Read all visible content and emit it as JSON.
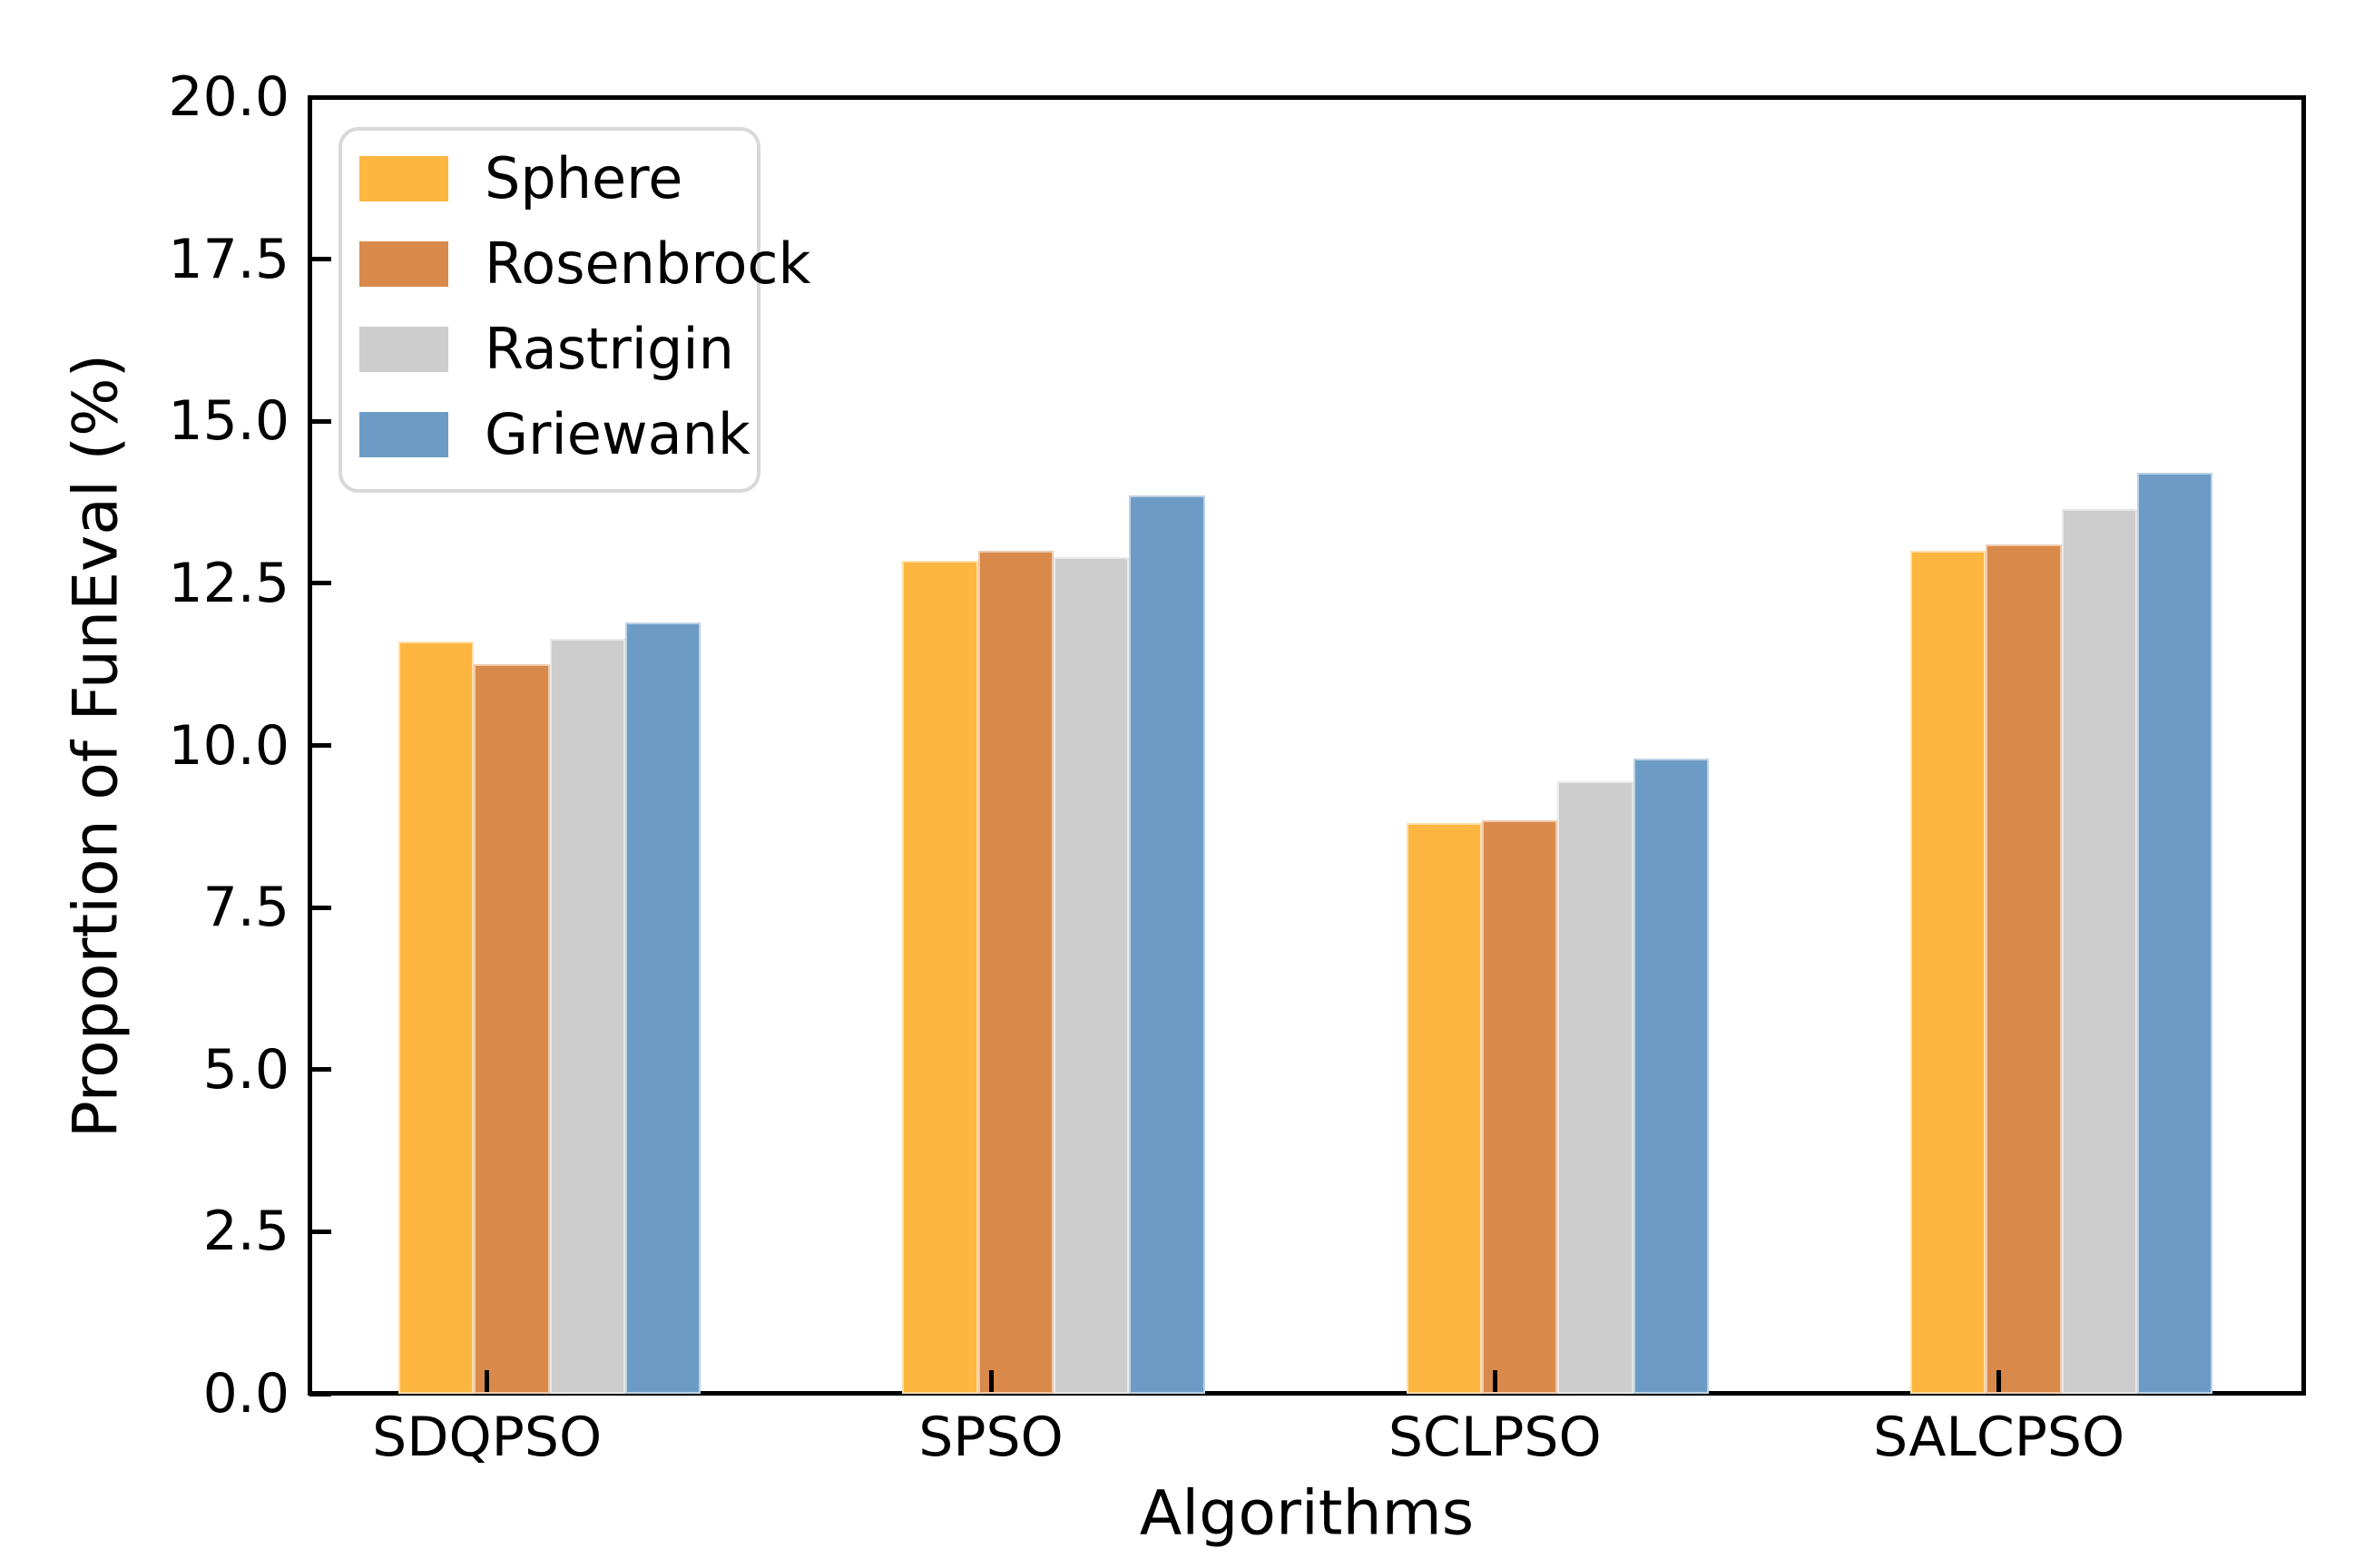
{
  "chart_data": {
    "type": "bar",
    "title": "",
    "xlabel": "Algorithms",
    "ylabel": "Proportion of FunEval (%)",
    "categories": [
      "SDQPSO",
      "SPSO",
      "SCLPSO",
      "SALCPSO"
    ],
    "series": [
      {
        "name": "Sphere",
        "color": "#FDB640",
        "values": [
          11.6,
          12.85,
          8.8,
          13.0
        ]
      },
      {
        "name": "Rosenbrock",
        "color": "#D98A4B",
        "values": [
          11.25,
          13.0,
          8.85,
          13.1
        ]
      },
      {
        "name": "Rastrigin",
        "color": "#CDCDCD",
        "values": [
          11.65,
          12.9,
          9.45,
          13.65
        ]
      },
      {
        "name": "Griewank",
        "color": "#6C9CC6",
        "values": [
          11.9,
          13.85,
          9.8,
          14.2
        ]
      }
    ],
    "ylim": [
      0,
      20
    ],
    "ytick_step": 2.5,
    "ytick_labels": [
      "0.0",
      "2.5",
      "5.0",
      "7.5",
      "10.0",
      "12.5",
      "15.0",
      "17.5",
      "20.0"
    ],
    "legend_position": "upper-left",
    "grid": false,
    "axis_color": "#000000",
    "background_color": "#ffffff"
  }
}
